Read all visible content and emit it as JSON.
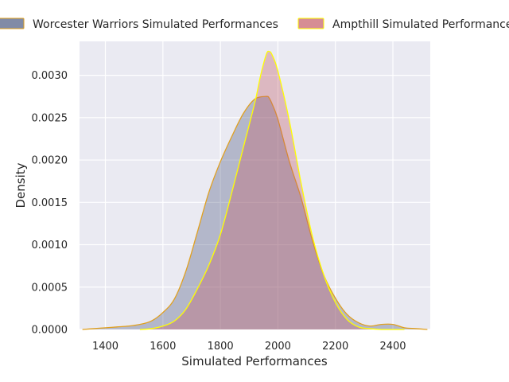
{
  "chart_data": {
    "type": "area",
    "xlabel": "Simulated Performances",
    "ylabel": "Density",
    "xlim": [
      1310,
      2530
    ],
    "ylim": [
      0,
      0.0034
    ],
    "x_ticks": [
      1400,
      1600,
      1800,
      2000,
      2200,
      2400
    ],
    "x_tick_labels": [
      "1400",
      "1600",
      "1800",
      "2000",
      "2200",
      "2400"
    ],
    "y_ticks": [
      0,
      0.0005,
      0.001,
      0.0015,
      0.002,
      0.0025,
      0.003
    ],
    "y_tick_labels": [
      "0.0000",
      "0.0005",
      "0.0010",
      "0.0015",
      "0.0020",
      "0.0025",
      "0.0030"
    ],
    "grid": true,
    "legend_position": "top",
    "series": [
      {
        "name": "Worcester Warriors Simulated Performances",
        "fill_color": "#4c5a80",
        "line_color": "#e0a020",
        "x": [
          1320,
          1360,
          1400,
          1440,
          1480,
          1520,
          1560,
          1600,
          1640,
          1680,
          1720,
          1760,
          1800,
          1840,
          1880,
          1920,
          1960,
          1970,
          1980,
          2000,
          2040,
          2080,
          2120,
          2160,
          2200,
          2240,
          2280,
          2320,
          2360,
          2400,
          2440,
          2480,
          2520
        ],
        "y": [
          0.0,
          1e-05,
          2e-05,
          3e-05,
          4e-05,
          6e-05,
          0.0001,
          0.0002,
          0.00036,
          0.00069,
          0.00115,
          0.00162,
          0.00198,
          0.00228,
          0.00255,
          0.00272,
          0.00275,
          0.00273,
          0.00266,
          0.00248,
          0.00198,
          0.00156,
          0.00105,
          0.00064,
          0.00037,
          0.00018,
          8e-05,
          4e-05,
          6e-05,
          6e-05,
          2e-05,
          1e-05,
          0.0
        ]
      },
      {
        "name": "Ampthill Simulated Performances",
        "fill_color": "#c45c66",
        "line_color": "#ffff00",
        "x": [
          1520,
          1560,
          1600,
          1640,
          1680,
          1720,
          1760,
          1800,
          1840,
          1880,
          1920,
          1940,
          1960,
          1970,
          1980,
          2000,
          2040,
          2080,
          2120,
          2160,
          2200,
          2240,
          2280,
          2320,
          2360,
          2400,
          2440
        ],
        "y": [
          0.0,
          1e-05,
          4e-05,
          0.0001,
          0.00024,
          0.00048,
          0.00076,
          0.00112,
          0.00162,
          0.00215,
          0.00268,
          0.003,
          0.00325,
          0.00328,
          0.00324,
          0.00305,
          0.00246,
          0.00174,
          0.0011,
          0.00064,
          0.00032,
          0.00012,
          3e-05,
          1e-05,
          0.0,
          0.0,
          0.0
        ]
      }
    ]
  }
}
